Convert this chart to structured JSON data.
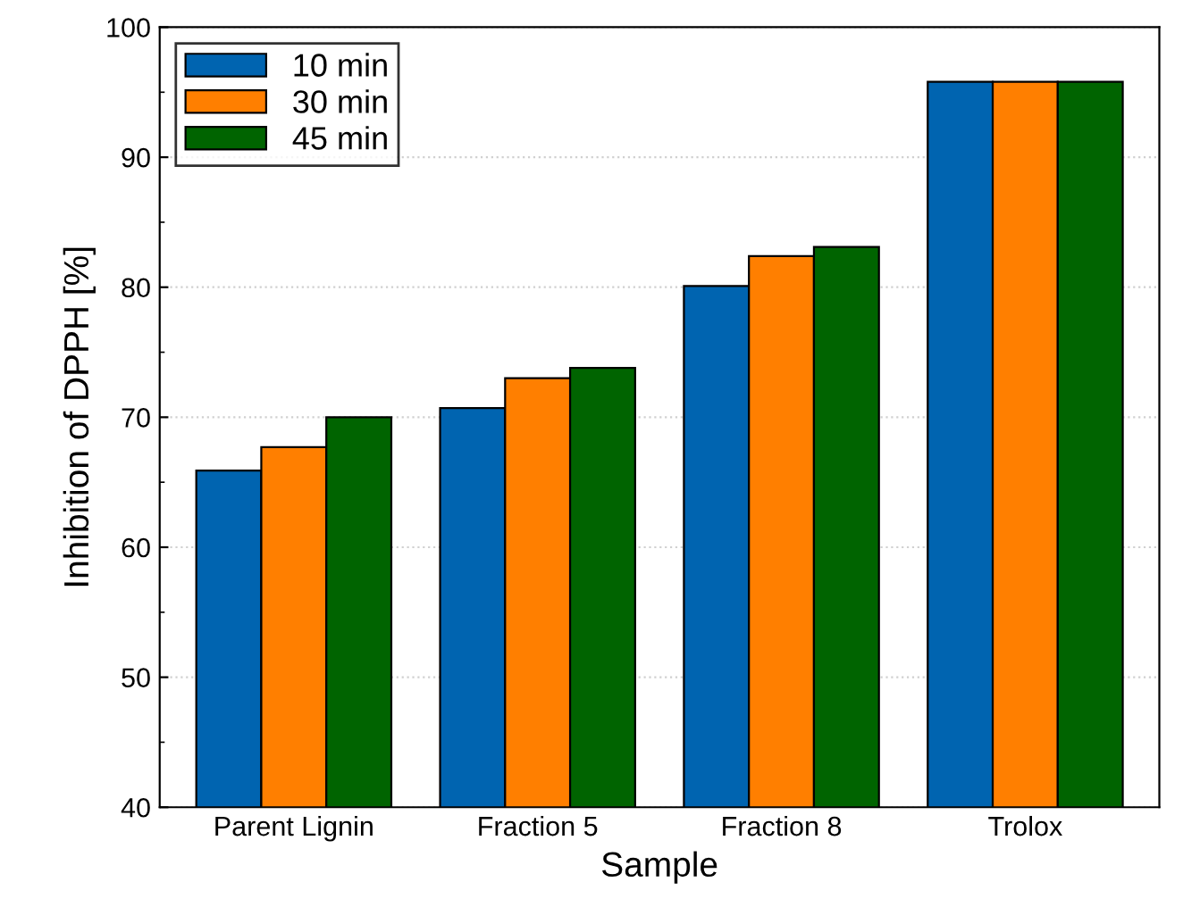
{
  "chart_data": {
    "type": "bar",
    "xlabel": "Sample",
    "ylabel": "Inhibition of DPPH [%]",
    "categories": [
      "Parent Lignin",
      "Fraction 5",
      "Fraction 8",
      "Trolox"
    ],
    "series": [
      {
        "name": "10 min",
        "color": "#0064b0",
        "values": [
          65.9,
          70.7,
          80.1,
          95.8
        ]
      },
      {
        "name": "30 min",
        "color": "#ff7f00",
        "values": [
          67.7,
          73.0,
          82.4,
          95.8
        ]
      },
      {
        "name": "45 min",
        "color": "#006400",
        "values": [
          70.0,
          73.8,
          83.1,
          95.8
        ]
      }
    ],
    "ylim": [
      40,
      100
    ],
    "yticks": [
      40,
      50,
      60,
      70,
      80,
      90,
      100
    ],
    "grid": "y",
    "legend": "top left"
  }
}
